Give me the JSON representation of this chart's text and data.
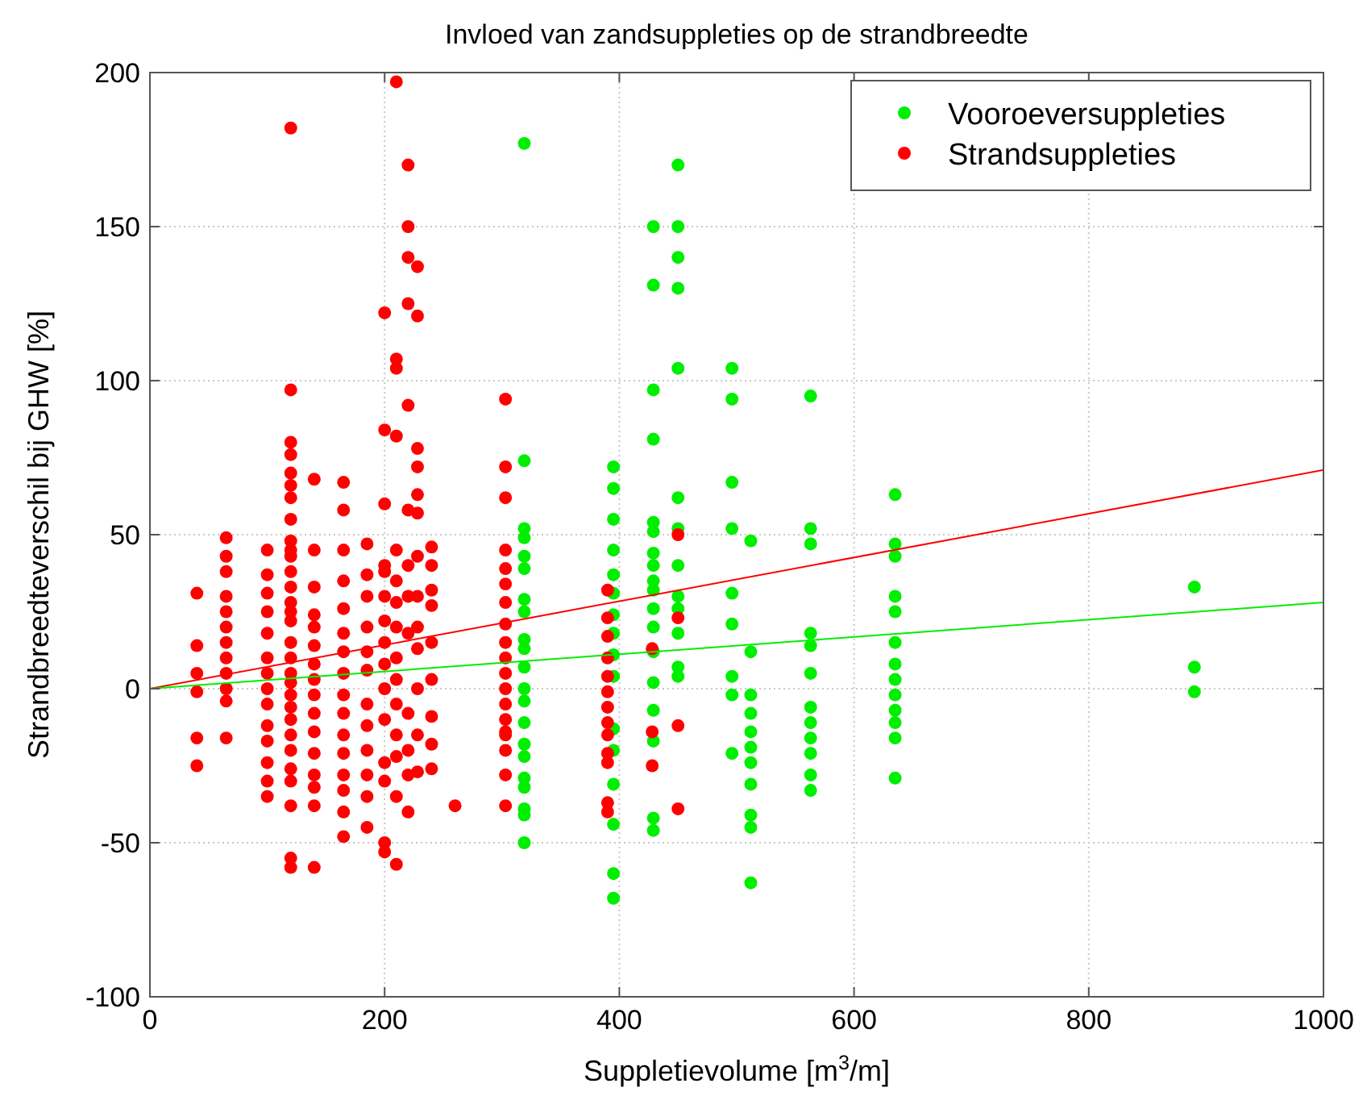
{
  "chart_data": {
    "type": "scatter",
    "title": "Invloed van zandsuppleties op de strandbreedte",
    "xlabel": "Suppletievolume [m$^{3}$/m]",
    "ylabel": "Strandbreedteverschil bij GHW [%]",
    "xlim": [
      0,
      1000
    ],
    "xticks": [
      0,
      200,
      400,
      600,
      800,
      1000
    ],
    "ylim": [
      -100,
      200
    ],
    "yticks": [
      -100,
      -50,
      0,
      50,
      100,
      150,
      200
    ],
    "grid": true,
    "legend": "top right",
    "series": [
      {
        "name": "Vooroeversuppleties",
        "color": "#00ee00",
        "marker": "circle",
        "x": [
          319,
          319,
          319,
          319,
          319,
          319,
          319,
          319,
          319,
          319,
          319,
          319,
          319,
          319,
          319,
          319,
          319,
          319,
          319,
          319,
          319,
          395,
          395,
          395,
          395,
          395,
          395,
          395,
          395,
          395,
          395,
          395,
          395,
          395,
          395,
          395,
          395,
          429,
          429,
          429,
          429,
          429,
          429,
          429,
          429,
          429,
          429,
          429,
          429,
          429,
          429,
          429,
          429,
          429,
          429,
          450,
          450,
          450,
          450,
          450,
          450,
          450,
          450,
          450,
          450,
          450,
          450,
          450,
          496,
          496,
          496,
          496,
          496,
          496,
          496,
          496,
          496,
          512,
          512,
          512,
          512,
          512,
          512,
          512,
          512,
          512,
          512,
          512,
          563,
          563,
          563,
          563,
          563,
          563,
          563,
          563,
          563,
          563,
          563,
          563,
          635,
          635,
          635,
          635,
          635,
          635,
          635,
          635,
          635,
          635,
          635,
          635,
          635,
          890,
          890,
          890
        ],
        "values": [
          177,
          74,
          52,
          49,
          43,
          39,
          29,
          25,
          16,
          13,
          7,
          0,
          -4,
          -11,
          -18,
          -22,
          -29,
          -32,
          -39,
          -41,
          -50,
          72,
          65,
          55,
          45,
          37,
          31,
          24,
          18,
          11,
          4,
          -13,
          -20,
          -31,
          -44,
          -60,
          -68,
          150,
          131,
          97,
          81,
          54,
          51,
          44,
          40,
          35,
          32,
          26,
          20,
          12,
          2,
          -7,
          -17,
          -42,
          -46,
          170,
          150,
          140,
          130,
          104,
          62,
          52,
          40,
          30,
          26,
          18,
          7,
          4,
          104,
          94,
          67,
          52,
          31,
          21,
          4,
          -2,
          -21,
          48,
          12,
          -2,
          -8,
          -14,
          -19,
          -24,
          -31,
          -41,
          -45,
          -63,
          95,
          52,
          47,
          18,
          14,
          5,
          -6,
          -11,
          -16,
          -21,
          -28,
          -33,
          63,
          47,
          43,
          30,
          25,
          15,
          8,
          3,
          -2,
          -7,
          -11,
          -16,
          -29,
          33,
          7,
          -1
        ]
      },
      {
        "name": "Strandsuppleties",
        "color": "#ff0000",
        "marker": "circle",
        "x": [
          40,
          40,
          40,
          40,
          40,
          40,
          65,
          65,
          65,
          65,
          65,
          65,
          65,
          65,
          65,
          65,
          65,
          65,
          100,
          100,
          100,
          100,
          100,
          100,
          100,
          100,
          100,
          100,
          100,
          100,
          100,
          100,
          120,
          120,
          120,
          120,
          120,
          120,
          120,
          120,
          120,
          120,
          120,
          120,
          120,
          120,
          120,
          120,
          120,
          120,
          120,
          120,
          120,
          120,
          120,
          120,
          120,
          120,
          120,
          120,
          120,
          120,
          140,
          140,
          140,
          140,
          140,
          140,
          140,
          140,
          140,
          140,
          140,
          140,
          140,
          140,
          140,
          140,
          165,
          165,
          165,
          165,
          165,
          165,
          165,
          165,
          165,
          165,
          165,
          165,
          165,
          165,
          165,
          165,
          185,
          185,
          185,
          185,
          185,
          185,
          185,
          185,
          185,
          185,
          185,
          185,
          200,
          200,
          200,
          200,
          200,
          200,
          200,
          200,
          200,
          200,
          200,
          200,
          200,
          200,
          200,
          210,
          210,
          210,
          210,
          210,
          210,
          210,
          210,
          210,
          210,
          210,
          210,
          210,
          210,
          210,
          220,
          220,
          220,
          220,
          220,
          220,
          220,
          220,
          220,
          220,
          220,
          220,
          220,
          228,
          228,
          228,
          228,
          228,
          228,
          228,
          228,
          228,
          228,
          228,
          228,
          228,
          240,
          240,
          240,
          240,
          240,
          240,
          240,
          240,
          240,
          260,
          303,
          303,
          303,
          303,
          303,
          303,
          303,
          303,
          303,
          303,
          303,
          303,
          303,
          303,
          303,
          303,
          303,
          303,
          303,
          390,
          390,
          390,
          390,
          390,
          390,
          390,
          390,
          390,
          390,
          390,
          390,
          390,
          428,
          428,
          428,
          450,
          450,
          450,
          450
        ],
        "values": [
          31,
          14,
          5,
          -1,
          -16,
          -25,
          49,
          43,
          38,
          30,
          25,
          20,
          15,
          10,
          5,
          0,
          -4,
          -16,
          45,
          37,
          31,
          25,
          18,
          10,
          5,
          0,
          -5,
          -12,
          -17,
          -24,
          -30,
          -35,
          182,
          97,
          80,
          76,
          70,
          66,
          62,
          55,
          48,
          45,
          43,
          38,
          33,
          28,
          25,
          22,
          15,
          10,
          5,
          2,
          -2,
          -6,
          -10,
          -15,
          -20,
          -26,
          -30,
          -38,
          -55,
          -58,
          68,
          45,
          33,
          24,
          20,
          14,
          8,
          3,
          -2,
          -8,
          -14,
          -21,
          -28,
          -32,
          -38,
          -58,
          67,
          58,
          45,
          35,
          26,
          18,
          12,
          5,
          -2,
          -8,
          -15,
          -21,
          -28,
          -33,
          -40,
          -48,
          47,
          37,
          30,
          20,
          12,
          6,
          -5,
          -12,
          -20,
          -28,
          -35,
          -45,
          122,
          84,
          60,
          40,
          38,
          30,
          22,
          15,
          8,
          0,
          -10,
          -24,
          -30,
          -50,
          -53,
          197,
          107,
          104,
          82,
          45,
          35,
          28,
          20,
          10,
          3,
          -5,
          -15,
          -22,
          -35,
          -57,
          170,
          150,
          140,
          125,
          92,
          58,
          40,
          30,
          18,
          -8,
          -20,
          -28,
          -40,
          137,
          121,
          78,
          72,
          63,
          57,
          43,
          30,
          20,
          13,
          0,
          -15,
          -27,
          46,
          40,
          32,
          27,
          15,
          3,
          -9,
          -18,
          -26,
          -38,
          94,
          72,
          62,
          45,
          39,
          34,
          28,
          21,
          15,
          10,
          5,
          0,
          -5,
          -10,
          -14,
          -15,
          -20,
          -28,
          -38,
          32,
          23,
          17,
          10,
          4,
          -1,
          -6,
          -11,
          -15,
          -21,
          -24,
          -37,
          -40,
          13,
          -14,
          -25,
          50,
          23,
          -12,
          -39
        ]
      },
      {
        "type": "line",
        "color": "#ff0000",
        "marker": "none",
        "x": [
          0,
          1000
        ],
        "values": [
          0,
          71
        ]
      },
      {
        "type": "line",
        "color": "#00ee00",
        "marker": "none",
        "x": [
          0,
          1000
        ],
        "values": [
          0,
          28
        ]
      }
    ]
  }
}
